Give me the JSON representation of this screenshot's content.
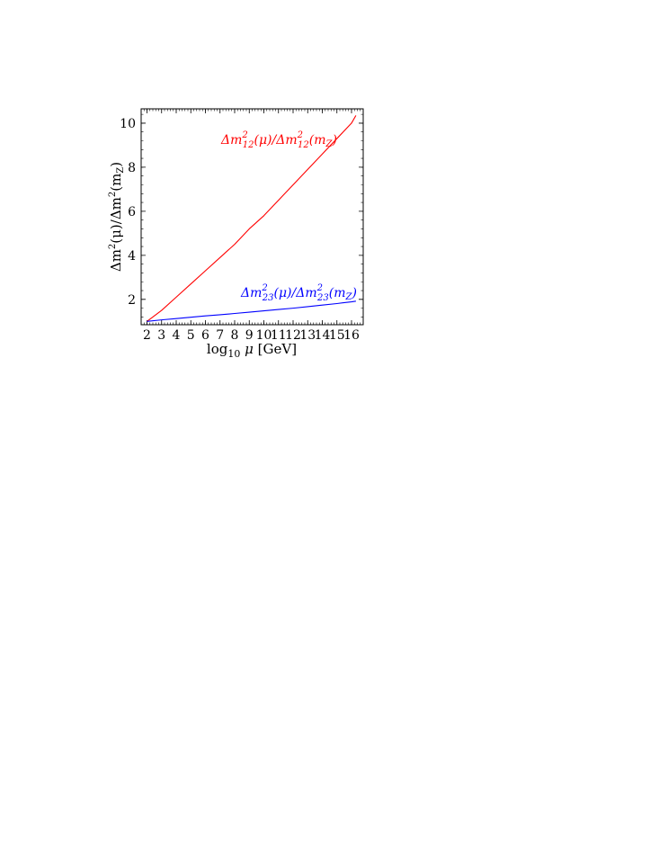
{
  "chart_data": {
    "type": "line",
    "xlabel_parts": {
      "base": "log",
      "sub": "10",
      "var": "μ",
      "unit": " [GeV]"
    },
    "ylabel_parts": {
      "a": "Δm",
      "sup1": "2",
      "b": "(μ)/Δm",
      "sup2": "2",
      "c": "(m",
      "sub": "Z",
      "d": ")"
    },
    "xlim": [
      1.6,
      16.8
    ],
    "ylim": [
      0.85,
      10.65
    ],
    "x_ticks": [
      2,
      3,
      4,
      5,
      6,
      7,
      8,
      9,
      10,
      11,
      12,
      13,
      14,
      15,
      16
    ],
    "y_ticks": [
      2,
      4,
      6,
      8,
      10
    ],
    "grid": false,
    "series": [
      {
        "color": "#ff0000",
        "label_parts": {
          "a": "Δm",
          "sup1": "2",
          "sub1": "12",
          "b": "(μ)/Δm",
          "sup2": "2",
          "sub2": "12",
          "c": "(m",
          "sub3": "Z",
          "d": ")"
        },
        "x": [
          2,
          3,
          4,
          5,
          6,
          7,
          8,
          9,
          10,
          11,
          12,
          13,
          14,
          15,
          16,
          16.3
        ],
        "y": [
          1.0,
          1.5,
          2.1,
          2.7,
          3.3,
          3.9,
          4.5,
          5.2,
          5.8,
          6.5,
          7.2,
          7.9,
          8.6,
          9.3,
          10.0,
          10.35
        ]
      },
      {
        "color": "#0000ff",
        "label_parts": {
          "a": "Δm",
          "sup1": "2",
          "sub1": "23",
          "b": "(μ)/Δm",
          "sup2": "2",
          "sub2": "23",
          "c": "(m",
          "sub3": "Z",
          "d": ")"
        },
        "x": [
          2,
          3,
          4,
          5,
          6,
          7,
          8,
          9,
          10,
          11,
          12,
          13,
          14,
          15,
          16,
          16.3
        ],
        "y": [
          1.0,
          1.07,
          1.13,
          1.19,
          1.25,
          1.3,
          1.36,
          1.42,
          1.48,
          1.54,
          1.6,
          1.67,
          1.74,
          1.81,
          1.89,
          1.92
        ]
      }
    ]
  }
}
